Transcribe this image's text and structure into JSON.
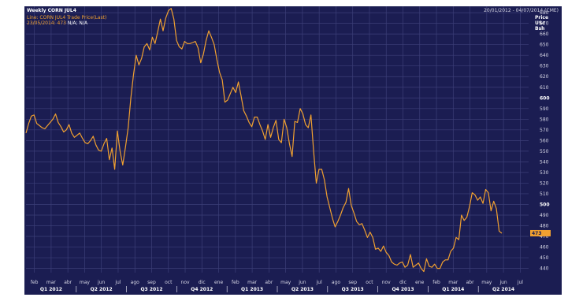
{
  "header": {
    "title": "Weekly CORN JUL4",
    "date_range": "20/01/2012 - 04/07/2014 (CME)",
    "legend_line": "Line: CORN JUL4  Trade Price(Last)",
    "legend_last_label": "23/05/2014: 473",
    "legend_last_value": "N/A; N/A",
    "unit_line1": "Price",
    "unit_line2": "USc",
    "unit_line3": "Bsh",
    "last_price_tag": "473"
  },
  "colors": {
    "background": "#1b1d52",
    "line": "#f0a030",
    "grid": "#3c3f78",
    "text": "#d8d8e6",
    "highlight": "#ffffff",
    "tag_bg": "#f0a030"
  },
  "chart_data": {
    "type": "line",
    "title": "Weekly CORN JUL4",
    "series": [
      {
        "name": "CORN JUL4 Trade Price(Last)",
        "y": [
          567,
          576,
          583,
          584,
          576,
          574,
          572,
          571,
          574,
          577,
          580,
          585,
          577,
          573,
          568,
          570,
          575,
          567,
          563,
          565,
          567,
          562,
          558,
          557,
          560,
          564,
          556,
          551,
          550,
          557,
          562,
          542,
          553,
          533,
          569,
          550,
          537,
          554,
          572,
          600,
          622,
          640,
          631,
          637,
          648,
          651,
          645,
          657,
          651,
          662,
          674,
          663,
          675,
          682,
          684,
          674,
          654,
          648,
          646,
          653,
          651,
          651,
          652,
          653,
          647,
          633,
          641,
          654,
          663,
          657,
          650,
          636,
          624,
          617,
          596,
          598,
          604,
          610,
          605,
          615,
          602,
          588,
          583,
          577,
          573,
          582,
          582,
          575,
          569,
          561,
          575,
          563,
          572,
          579,
          561,
          558,
          580,
          572,
          557,
          545,
          578,
          577,
          590,
          585,
          575,
          572,
          584,
          550,
          520,
          533,
          533,
          523,
          507,
          497,
          487,
          479,
          484,
          490,
          497,
          502,
          515,
          499,
          492,
          484,
          481,
          482,
          476,
          469,
          474,
          469,
          458,
          459,
          456,
          461,
          455,
          452,
          446,
          444,
          443,
          445,
          446,
          441,
          443,
          453,
          441,
          443,
          445,
          440,
          437,
          449,
          442,
          441,
          444,
          440,
          440,
          446,
          448,
          448,
          456,
          459,
          469,
          467,
          490,
          485,
          488,
          498,
          511,
          509,
          504,
          507,
          501,
          514,
          511,
          494,
          503,
          496,
          475,
          473
        ]
      }
    ],
    "x_labels": [
      "feb",
      "mar",
      "abr",
      "may",
      "jun",
      "jul",
      "ago",
      "sep",
      "oct",
      "nov",
      "dic",
      "ene",
      "feb",
      "mar",
      "abr",
      "may",
      "jun",
      "jul",
      "ago",
      "sep",
      "oct",
      "nov",
      "dic",
      "ene",
      "feb",
      "mar",
      "abr",
      "may",
      "jun",
      "jul"
    ],
    "quarter_labels": [
      "Q1 2012",
      "Q2 2012",
      "Q3 2012",
      "Q4 2012",
      "Q1 2013",
      "Q2 2013",
      "Q3 2013",
      "Q4 2013",
      "Q1 2014",
      "Q2 2014"
    ],
    "y_ticks": [
      440,
      450,
      460,
      470,
      480,
      490,
      500,
      510,
      520,
      530,
      540,
      550,
      560,
      570,
      580,
      590,
      600,
      610,
      620,
      630,
      640,
      650,
      660,
      670,
      680
    ],
    "bold_ticks": [
      500,
      600
    ],
    "ylim": [
      436,
      686
    ],
    "grid": true
  }
}
